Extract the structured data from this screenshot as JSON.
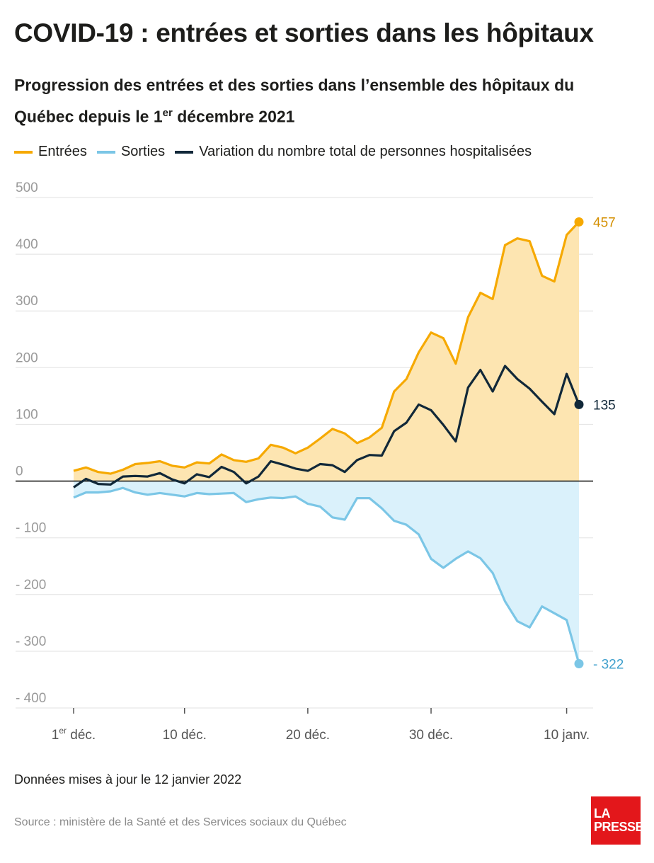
{
  "title": "COVID-19 : entrées et sorties dans les hôpitaux",
  "subtitle": {
    "text_before": "Progression des entrées et des sorties dans l’ensemble des hôpitaux du Québec depuis le 1",
    "sup": "er",
    "text_after": " décembre 2021"
  },
  "footnote": "Données mises à jour le 12 janvier 2022",
  "source": "Source : ministère de la Santé et des Services sociaux du Québec",
  "logo": {
    "line1": "LA",
    "line2": "PRESSE"
  },
  "colors": {
    "entrees": "#f6a900",
    "entrees_fill": "#fde5b1",
    "sorties": "#7bc6e6",
    "sorties_fill": "#daf1fb",
    "variation": "#112839",
    "entrees_label": "#d48f00",
    "sorties_label": "#3e9fcc",
    "axis_text": "#9a9a9a",
    "grid": "#e6e6e6"
  },
  "chart_data": {
    "type": "line",
    "x_start_label": "1er déc.",
    "x": [
      "2021-12-01",
      "2021-12-02",
      "2021-12-03",
      "2021-12-04",
      "2021-12-05",
      "2021-12-06",
      "2021-12-07",
      "2021-12-08",
      "2021-12-09",
      "2021-12-10",
      "2021-12-11",
      "2021-12-12",
      "2021-12-13",
      "2021-12-14",
      "2021-12-15",
      "2021-12-16",
      "2021-12-17",
      "2021-12-18",
      "2021-12-19",
      "2021-12-20",
      "2021-12-21",
      "2021-12-22",
      "2021-12-23",
      "2021-12-24",
      "2021-12-25",
      "2021-12-26",
      "2021-12-27",
      "2021-12-28",
      "2021-12-29",
      "2021-12-30",
      "2021-12-31",
      "2022-01-01",
      "2022-01-02",
      "2022-01-03",
      "2022-01-04",
      "2022-01-05",
      "2022-01-06",
      "2022-01-07",
      "2022-01-08",
      "2022-01-09",
      "2022-01-10",
      "2022-01-11"
    ],
    "series": [
      {
        "name": "Entrées",
        "values": [
          18,
          24,
          16,
          13,
          20,
          30,
          32,
          35,
          27,
          24,
          33,
          31,
          47,
          37,
          34,
          40,
          64,
          59,
          49,
          59,
          75,
          92,
          84,
          67,
          77,
          94,
          158,
          180,
          227,
          262,
          252,
          207,
          289,
          332,
          321,
          416,
          428,
          423,
          362,
          352,
          434,
          457
        ]
      },
      {
        "name": "Sorties",
        "values": [
          -29,
          -20,
          -20,
          -18,
          -12,
          -20,
          -24,
          -21,
          -24,
          -27,
          -21,
          -23,
          -22,
          -21,
          -37,
          -32,
          -29,
          -30,
          -27,
          -40,
          -45,
          -64,
          -68,
          -30,
          -30,
          -48,
          -70,
          -77,
          -94,
          -137,
          -153,
          -137,
          -124,
          -136,
          -162,
          -212,
          -247,
          -258,
          -221,
          -233,
          -245,
          -322
        ]
      },
      {
        "name": "Variation du nombre total de personnes hospitalisées",
        "values": [
          -11,
          4,
          -5,
          -6,
          8,
          9,
          8,
          14,
          3,
          -4,
          12,
          7,
          25,
          16,
          -4,
          8,
          35,
          29,
          22,
          18,
          30,
          28,
          16,
          37,
          46,
          45,
          88,
          103,
          135,
          125,
          99,
          70,
          165,
          196,
          158,
          203,
          180,
          163,
          140,
          118,
          189,
          135
        ]
      }
    ],
    "end_labels": {
      "entrees": "457",
      "sorties": "- 322",
      "variation": "135"
    },
    "ylim": [
      -400,
      500
    ],
    "yticks": [
      {
        "value": 500,
        "label": "500"
      },
      {
        "value": 400,
        "label": "400"
      },
      {
        "value": 300,
        "label": "300"
      },
      {
        "value": 200,
        "label": "200"
      },
      {
        "value": 100,
        "label": "100"
      },
      {
        "value": 0,
        "label": "0"
      },
      {
        "value": -100,
        "label": "- 100"
      },
      {
        "value": -200,
        "label": "- 200"
      },
      {
        "value": -300,
        "label": "- 300"
      },
      {
        "value": -400,
        "label": "- 400"
      }
    ],
    "xticks": [
      {
        "date": "2021-12-01",
        "label": "1",
        "sup": "er",
        "after": " déc."
      },
      {
        "date": "2021-12-10",
        "label": "10 déc."
      },
      {
        "date": "2021-12-20",
        "label": "20 déc."
      },
      {
        "date": "2021-12-30",
        "label": "30 déc."
      },
      {
        "date": "2022-01-10",
        "label": "10 janv."
      }
    ],
    "grid": true
  }
}
